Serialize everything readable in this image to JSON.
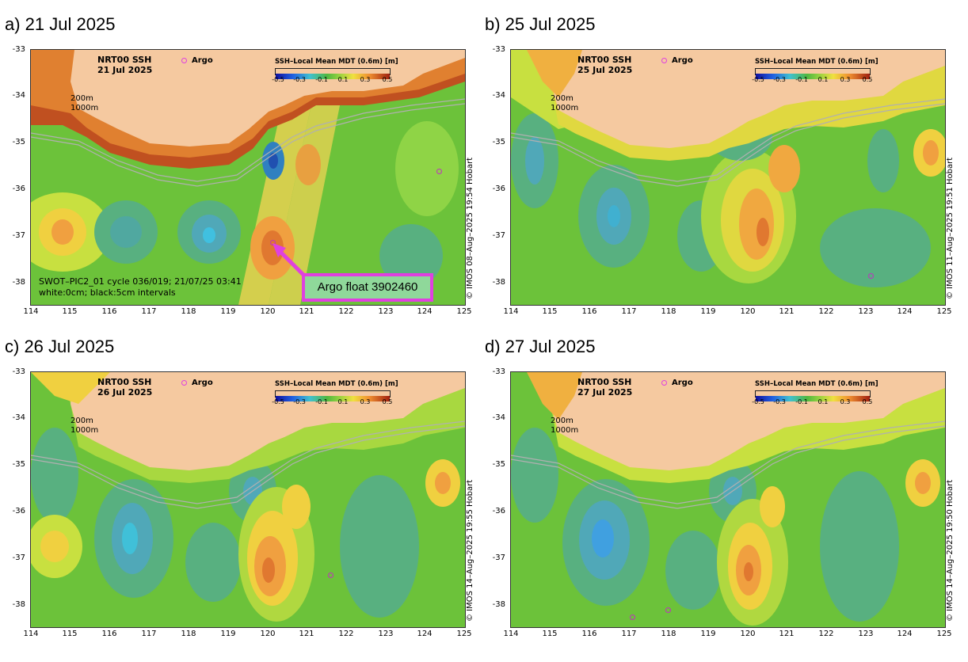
{
  "colors": {
    "land": "#f5c9a0",
    "ocean_base": "#6cc23a",
    "argo_marker": "#e040e0",
    "callout_fill": "#8fd89a"
  },
  "common": {
    "product": "NRT00 SSH",
    "argo_label": "Argo",
    "isobath_200": "200m",
    "isobath_1000": "1000m",
    "colorbar_title": "SSH–Local Mean MDT (0.6m) [m]",
    "colorbar_ticks": [
      "-0.5",
      "-0.3",
      "-0.1",
      "0.1",
      "0.3",
      "0.5"
    ],
    "y_ticks": [
      "-33",
      "-34",
      "-35",
      "-36",
      "-37",
      "-38"
    ],
    "x_ticks": [
      "114",
      "115",
      "116",
      "117",
      "118",
      "119",
      "120",
      "121",
      "122",
      "123",
      "124",
      "125"
    ]
  },
  "panels": [
    {
      "title": "a) 21 Jul 2025",
      "date": "21 Jul 2025",
      "credit": "© IMOS 08–Aug–2025 19:54 Hobart",
      "swot_note_1": "SWOT–PIC2_01 cycle 036/019; 21/07/25 03:41",
      "swot_note_2": "white:0cm; black:5cm intervals",
      "callout": "Argo float 3902460",
      "argo_positions": [
        [
          120.3,
          -37.1
        ],
        [
          124.7,
          -35.6
        ]
      ]
    },
    {
      "title": "b) 25 Jul 2025",
      "date": "25 Jul 2025",
      "credit": "© IMOS 11–Aug–2025 19:51 Hobart",
      "argo_positions": [
        [
          123.1,
          -37.8
        ]
      ]
    },
    {
      "title": "c) 26 Jul 2025",
      "date": "26 Jul 2025",
      "credit": "© IMOS 14–Aug–2025 19:55 Hobart",
      "argo_positions": [
        [
          121.8,
          -37.3
        ]
      ]
    },
    {
      "title": "d) 27 Jul 2025",
      "date": "27 Jul 2025",
      "credit": "© IMOS 14–Aug–2025 19:50 Hobart",
      "argo_positions": [
        [
          117.1,
          -38.4
        ],
        [
          118.0,
          -38.25
        ]
      ]
    }
  ]
}
